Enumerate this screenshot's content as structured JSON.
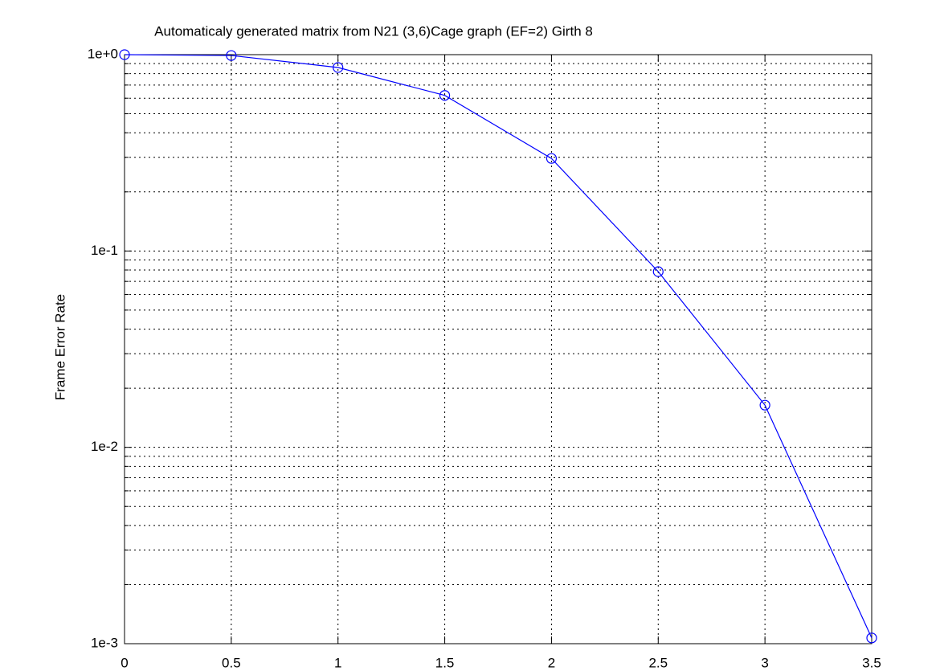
{
  "chart_data": {
    "type": "line",
    "title": "Automaticaly generated matrix from N21 (3,6)Cage graph (EF=2) Girth 8",
    "ylabel": "Frame Error Rate",
    "x": [
      0,
      0.5,
      1,
      1.5,
      2,
      2.5,
      3,
      3.5
    ],
    "series": [
      {
        "color": "#0000ff",
        "values": [
          1.0,
          0.99,
          0.86,
          0.62,
          0.296,
          0.0785,
          0.0164,
          0.00107
        ]
      }
    ],
    "xlim": [
      0,
      3.5
    ],
    "xticks": [
      0,
      0.5,
      1,
      1.5,
      2,
      2.5,
      3,
      3.5
    ],
    "ylim": [
      0.001,
      1
    ],
    "ylog": true,
    "yticks": [
      {
        "value": 1,
        "label": "1e+0"
      },
      {
        "value": 0.1,
        "label": "1e-1"
      },
      {
        "value": 0.01,
        "label": "1e-2"
      },
      {
        "value": 0.001,
        "label": "1e-3"
      }
    ],
    "yminorticks": [
      0.9,
      0.8,
      0.7,
      0.6,
      0.5,
      0.4,
      0.3,
      0.2,
      0.09,
      0.08,
      0.07,
      0.06,
      0.05,
      0.04,
      0.03,
      0.02,
      0.009,
      0.008,
      0.007,
      0.006,
      0.005,
      0.004,
      0.003,
      0.002
    ],
    "grid": true,
    "marker": "circle"
  }
}
